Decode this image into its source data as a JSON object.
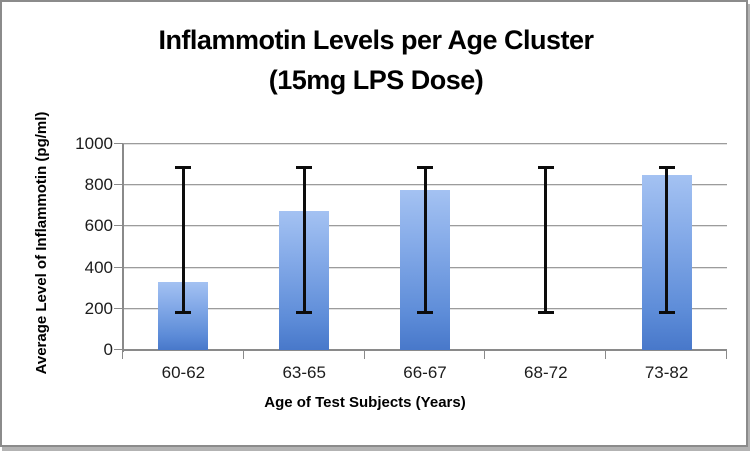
{
  "chart_data": {
    "type": "bar",
    "title_line1": "Inflammotin Levels per Age Cluster",
    "title_line2": "(15mg LPS Dose)",
    "xlabel": "Age of Test Subjects (Years)",
    "ylabel": "Average Level of Inflammotin (pg/ml)",
    "categories": [
      "60-62",
      "63-65",
      "66-67",
      "68-72",
      "73-82"
    ],
    "values": [
      330,
      675,
      775,
      0,
      850
    ],
    "error_low": [
      180,
      180,
      180,
      180,
      180
    ],
    "error_high": [
      890,
      890,
      890,
      890,
      890
    ],
    "ylim": [
      0,
      1000
    ],
    "ytick_interval": 200,
    "yticks": [
      "1000",
      "800",
      "600",
      "400",
      "200",
      "0"
    ],
    "grid": true,
    "legend": false
  },
  "colors": {
    "bar_top": "#a4c2f2",
    "bar_bottom": "#4878ca",
    "gridline": "#9c9c9c",
    "axis": "#8a8a8a",
    "error_bar": "#0c0c0c",
    "tick_text": "#1c1c1c",
    "title_text": "#000000",
    "frame_border": "#8b8b8b",
    "background": "#ffffff"
  }
}
